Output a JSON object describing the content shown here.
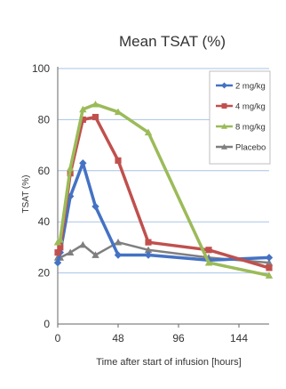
{
  "chart_data": {
    "type": "line",
    "title": "Mean TSAT (%)",
    "xlabel": "Time after start of infusion [hours]",
    "ylabel": "TSAT (%)",
    "xlim": [
      0,
      168
    ],
    "ylim": [
      0,
      100
    ],
    "x_ticks": [
      "0",
      "48",
      "96",
      "144"
    ],
    "y_ticks": [
      "0",
      "20",
      "40",
      "60",
      "80",
      "100"
    ],
    "grid": "horizontal",
    "legend_position": "top-right",
    "series": [
      {
        "name": "2 mg/kg",
        "color": "#4472c4",
        "marker": "diamond",
        "x": [
          0,
          2,
          10,
          20,
          30,
          48,
          72,
          120,
          168
        ],
        "y": [
          24,
          28,
          50,
          63,
          46,
          27,
          27,
          25,
          26
        ]
      },
      {
        "name": "4 mg/kg",
        "color": "#c0504d",
        "marker": "square",
        "x": [
          0,
          2,
          10,
          20,
          30,
          48,
          72,
          120,
          168
        ],
        "y": [
          28,
          30,
          59,
          80,
          81,
          64,
          32,
          29,
          22
        ]
      },
      {
        "name": "8 mg/kg",
        "color": "#9bbb59",
        "marker": "triangle",
        "x": [
          0,
          2,
          10,
          20,
          30,
          48,
          72,
          120,
          168
        ],
        "y": [
          32,
          33,
          61,
          84,
          86,
          83,
          75,
          24,
          19
        ]
      },
      {
        "name": "Placebo",
        "color": "#7f7f7f",
        "marker": "triangle",
        "x": [
          0,
          2,
          10,
          20,
          30,
          48,
          72,
          120,
          168
        ],
        "y": [
          26,
          26,
          28,
          31,
          27,
          32,
          29,
          26,
          24
        ]
      }
    ]
  }
}
